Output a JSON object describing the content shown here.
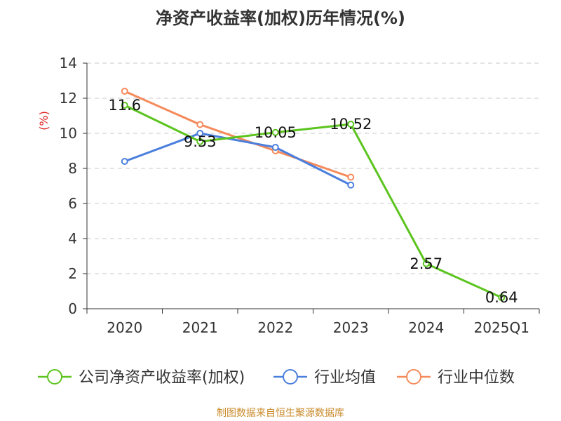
{
  "chart_data": {
    "type": "line",
    "title": "净资产收益率(加权)历年情况(%)",
    "ylabel": "(%)",
    "xlabel": "",
    "categories": [
      "2020",
      "2021",
      "2022",
      "2023",
      "2024",
      "2025Q1"
    ],
    "ylim": [
      0,
      14
    ],
    "yticks": [
      0,
      2,
      4,
      6,
      8,
      10,
      12,
      14
    ],
    "grid": true,
    "legend_position": "bottom",
    "series": [
      {
        "name": "公司净资产收益率(加权)",
        "color": "#5cc41f",
        "values": [
          11.6,
          9.53,
          10.05,
          10.52,
          2.57,
          0.64
        ],
        "labels": [
          "11.6",
          "9.53",
          "10.05",
          "10.52",
          "2.57",
          "0.64"
        ]
      },
      {
        "name": "行业均值",
        "color": "#4a7fdd",
        "values": [
          8.4,
          10.0,
          9.2,
          7.05,
          null,
          null
        ]
      },
      {
        "name": "行业中位数",
        "color": "#f58a5a",
        "values": [
          12.4,
          10.5,
          9.0,
          7.5,
          null,
          null
        ]
      }
    ]
  },
  "ylabel_color": "#e02020",
  "source": "制图数据来自恒生聚源数据库"
}
